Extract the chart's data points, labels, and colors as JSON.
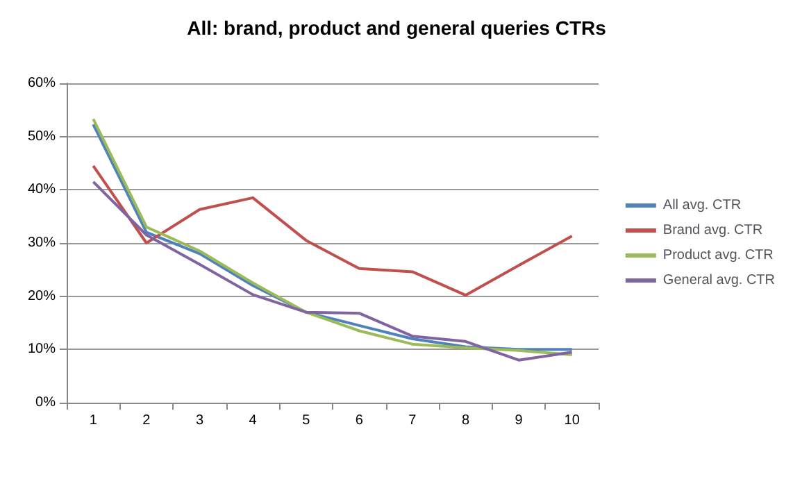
{
  "chart_data": {
    "type": "line",
    "title": "All: brand, product and general queries CTRs",
    "categories": [
      "1",
      "2",
      "3",
      "4",
      "5",
      "6",
      "7",
      "8",
      "9",
      "10"
    ],
    "series": [
      {
        "name": "All avg. CTR",
        "color": "#4f81bd",
        "values": [
          52.3,
          32,
          28,
          22,
          17,
          14.5,
          12,
          10.5,
          10,
          10
        ]
      },
      {
        "name": "Brand avg. CTR",
        "color": "#c0504d",
        "values": [
          44.5,
          30,
          36.3,
          38.5,
          30.5,
          25.2,
          24.6,
          20.2,
          25.8,
          31.3
        ]
      },
      {
        "name": "Product avg. CTR",
        "color": "#9bbb59",
        "values": [
          53.3,
          33,
          28.5,
          22.5,
          17,
          13.5,
          11,
          10.3,
          9.8,
          9
        ]
      },
      {
        "name": "General avg. CTR",
        "color": "#8064a2",
        "values": [
          41.5,
          31.5,
          26,
          20.3,
          17,
          16.8,
          12.5,
          11.5,
          8,
          9.5
        ]
      }
    ],
    "ylim": [
      0,
      60
    ],
    "yticks": [
      {
        "value": 0,
        "label": "0%"
      },
      {
        "value": 10,
        "label": "10%"
      },
      {
        "value": 20,
        "label": "20%"
      },
      {
        "value": 30,
        "label": "30%"
      },
      {
        "value": 40,
        "label": "40%"
      },
      {
        "value": 50,
        "label": "50%"
      },
      {
        "value": 60,
        "label": "60%"
      }
    ],
    "grid": "y",
    "legend": "right",
    "marker": "none",
    "line_style": "solid"
  }
}
